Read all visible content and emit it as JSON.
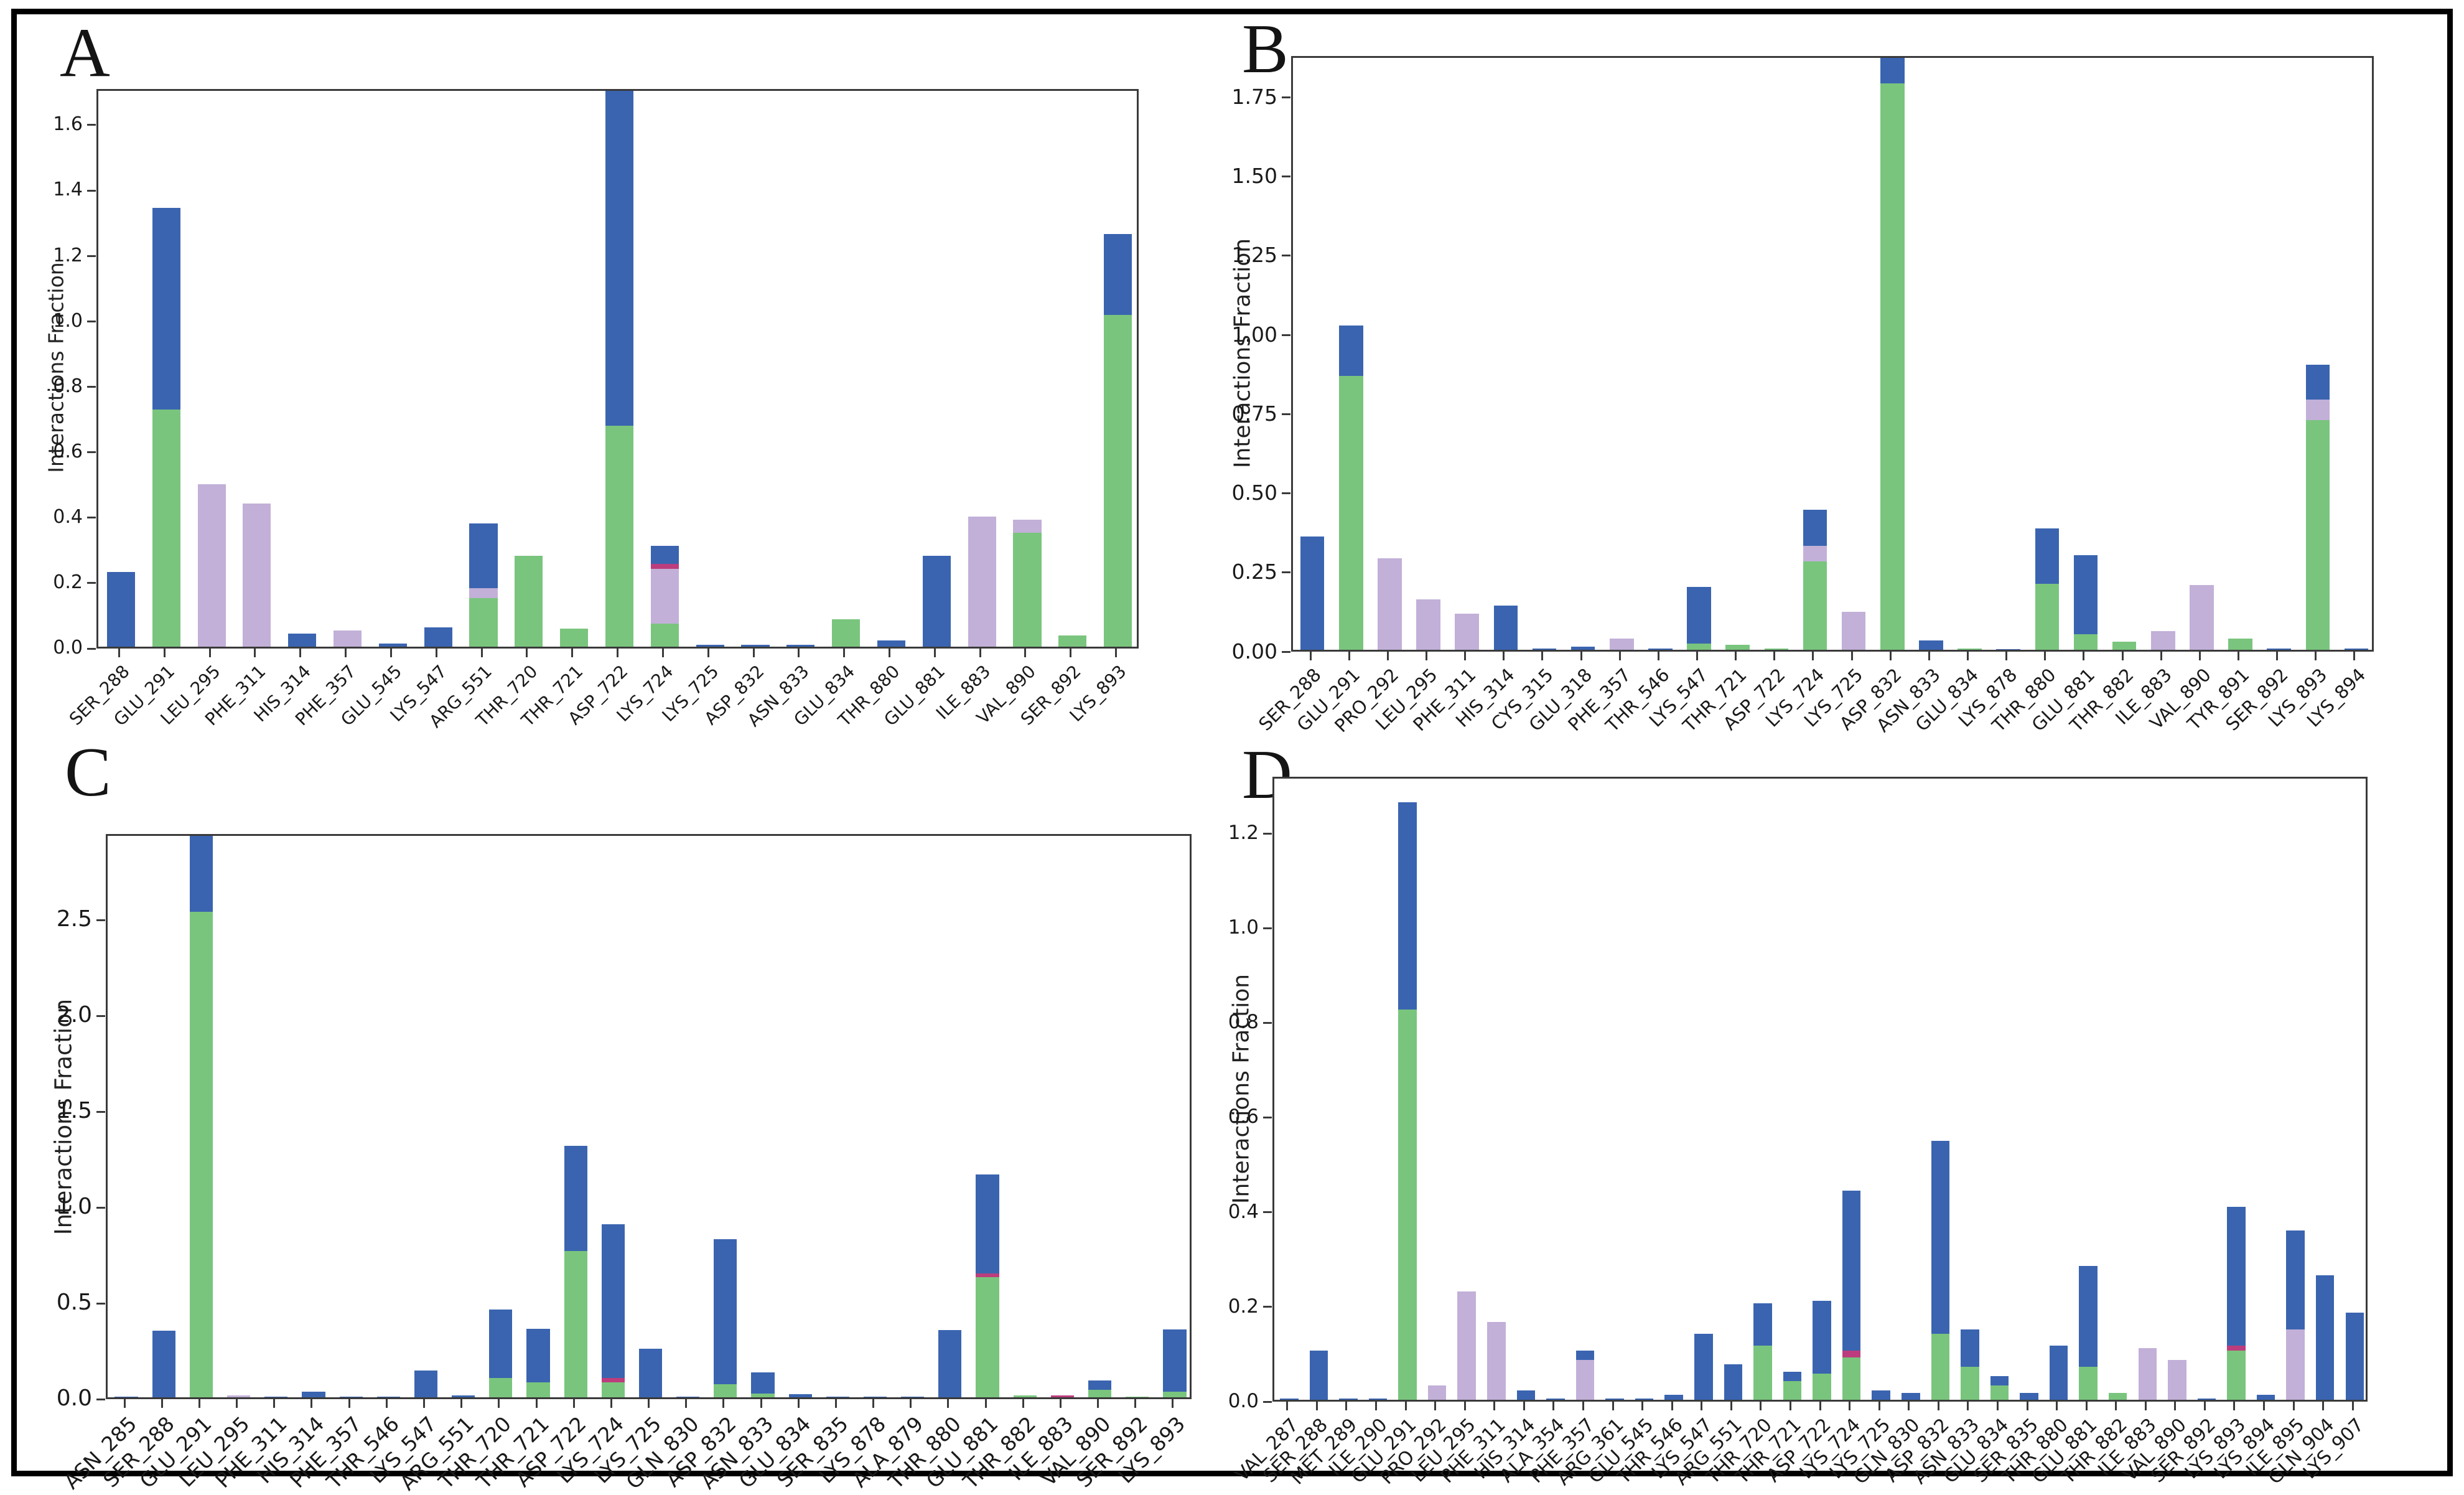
{
  "figure": {
    "background": "#ffffff",
    "outer_border_color": "#000000",
    "axis_color": "#3a3a3a",
    "segment_colors": {
      "green": "#79c57d",
      "purple": "#c2b0d8",
      "pink": "#bc3d7d",
      "blue": "#3a64b0"
    }
  },
  "chart_data": [
    {
      "id": "A",
      "type": "bar",
      "stacked": true,
      "title": "A",
      "ylabel": "Interactions Fraction",
      "xlabel": "",
      "grid": false,
      "legend": "none",
      "ylim": [
        0,
        1.71
      ],
      "yticks": {
        "values": [
          0,
          0.2,
          0.4,
          0.6,
          0.8,
          1.0,
          1.2,
          1.4,
          1.6
        ],
        "labels": [
          "0.0",
          "0.2",
          "0.4",
          "0.6",
          "0.8",
          "1.0",
          "1.2",
          "1.4",
          "1.6"
        ]
      },
      "categories": [
        "SER_288",
        "GLU_291",
        "LEU_295",
        "PHE_311",
        "HIS_314",
        "PHE_357",
        "GLU_545",
        "LYS_547",
        "ARG_551",
        "THR_720",
        "THR_721",
        "ASP_722",
        "LYS_724",
        "LYS_725",
        "ASP_832",
        "ASN_833",
        "GLU_834",
        "THR_880",
        "GLU_881",
        "ILE_883",
        "VAL_890",
        "SER_892",
        "LYS_893"
      ],
      "series": [
        {
          "name": "green",
          "color": "#79c57d",
          "values": [
            0,
            0.73,
            0,
            0,
            0,
            0,
            0,
            0,
            0.15,
            0.28,
            0.055,
            0.68,
            0.07,
            0,
            0,
            0,
            0.085,
            0,
            0,
            0,
            0.35,
            0.035,
            1.02
          ]
        },
        {
          "name": "purple",
          "color": "#c2b0d8",
          "values": [
            0,
            0,
            0.5,
            0.44,
            0,
            0.05,
            0,
            0,
            0.03,
            0,
            0,
            0,
            0.17,
            0,
            0,
            0,
            0,
            0,
            0,
            0.4,
            0.04,
            0,
            0
          ]
        },
        {
          "name": "pink",
          "color": "#bc3d7d",
          "values": [
            0,
            0,
            0,
            0,
            0,
            0,
            0,
            0,
            0,
            0,
            0,
            0,
            0.015,
            0,
            0,
            0,
            0,
            0,
            0,
            0,
            0,
            0,
            0
          ]
        },
        {
          "name": "blue",
          "color": "#3a64b0",
          "values": [
            0.23,
            0.62,
            0,
            0,
            0.04,
            0,
            0.01,
            0.06,
            0.2,
            0,
            0,
            1.03,
            0.055,
            0.005,
            0.005,
            0.005,
            0,
            0.02,
            0.28,
            0,
            0,
            0,
            0.25
          ]
        }
      ]
    },
    {
      "id": "B",
      "type": "bar",
      "stacked": true,
      "title": "B",
      "ylabel": "Interactions Fraction",
      "xlabel": "",
      "grid": false,
      "legend": "none",
      "ylim": [
        0,
        1.88
      ],
      "yticks": {
        "values": [
          0,
          0.25,
          0.5,
          0.75,
          1.0,
          1.25,
          1.5,
          1.75
        ],
        "labels": [
          "0.00",
          "0.25",
          "0.50",
          "0.75",
          "1.00",
          "1.25",
          "1.50",
          "1.75"
        ]
      },
      "categories": [
        "SER_288",
        "GLU_291",
        "PRO_292",
        "LEU_295",
        "PHE_311",
        "HIS_314",
        "CYS_315",
        "GLU_318",
        "PHE_357",
        "THR_546",
        "LYS_547",
        "THR_721",
        "ASP_722",
        "LYS_724",
        "LYS_725",
        "ASP_832",
        "ASN_833",
        "GLU_834",
        "LYS_878",
        "THR_880",
        "GLU_881",
        "THR_882",
        "ILE_883",
        "VAL_890",
        "TYR_891",
        "SER_892",
        "LYS_893",
        "LYS_894"
      ],
      "series": [
        {
          "name": "green",
          "color": "#79c57d",
          "values": [
            0,
            0.87,
            0,
            0,
            0,
            0,
            0,
            0,
            0,
            0,
            0.02,
            0.015,
            0.005,
            0.28,
            0,
            1.8,
            0,
            0.005,
            0,
            0.21,
            0.05,
            0.025,
            0,
            0,
            0.035,
            0,
            0.73,
            0
          ]
        },
        {
          "name": "purple",
          "color": "#c2b0d8",
          "values": [
            0,
            0,
            0.29,
            0.16,
            0.115,
            0,
            0,
            0,
            0.035,
            0,
            0,
            0,
            0,
            0.05,
            0.12,
            0,
            0,
            0,
            0,
            0,
            0,
            0,
            0.06,
            0.205,
            0,
            0,
            0.065,
            0
          ]
        },
        {
          "name": "pink",
          "color": "#bc3d7d",
          "values": [
            0,
            0,
            0,
            0,
            0,
            0,
            0,
            0,
            0,
            0,
            0,
            0,
            0,
            0,
            0,
            0,
            0,
            0,
            0,
            0,
            0,
            0,
            0,
            0,
            0,
            0,
            0,
            0
          ]
        },
        {
          "name": "blue",
          "color": "#3a64b0",
          "values": [
            0.36,
            0.16,
            0,
            0,
            0,
            0.14,
            0.005,
            0.01,
            0,
            0.005,
            0.18,
            0,
            0,
            0.115,
            0,
            0.08,
            0.03,
            0,
            0.003,
            0.175,
            0.25,
            0,
            0,
            0,
            0,
            0.005,
            0.11,
            0.005
          ]
        }
      ]
    },
    {
      "id": "C",
      "type": "bar",
      "stacked": true,
      "title": "C",
      "ylabel": "Interactions Fraction",
      "xlabel": "",
      "grid": false,
      "legend": "none",
      "ylim": [
        0,
        2.95
      ],
      "yticks": {
        "values": [
          0,
          0.5,
          1.0,
          1.5,
          2.0,
          2.5
        ],
        "labels": [
          "0.0",
          "0.5",
          "1.0",
          "1.5",
          "2.0",
          "2.5"
        ]
      },
      "categories": [
        "ASN_285",
        "SER_288",
        "GLU_291",
        "LEU_295",
        "PHE_311",
        "HIS_314",
        "PHE_357",
        "THR_546",
        "LYS_547",
        "ARG_551",
        "THR_720",
        "THR_721",
        "ASP_722",
        "LYS_724",
        "LYS_725",
        "GLN_830",
        "ASP_832",
        "ASN_833",
        "GLU_834",
        "SER_835",
        "LYS_878",
        "ALA_879",
        "THR_880",
        "GLU_881",
        "THR_882",
        "ILE_883",
        "VAL_890",
        "SER_892",
        "LYS_893"
      ],
      "series": [
        {
          "name": "green",
          "color": "#79c57d",
          "values": [
            0,
            0,
            2.55,
            0,
            0,
            0,
            0,
            0,
            0,
            0,
            0.1,
            0.08,
            0.77,
            0.08,
            0,
            0,
            0.07,
            0.02,
            0,
            0,
            0,
            0,
            0,
            0.63,
            0.01,
            0,
            0.04,
            0.005,
            0.03
          ]
        },
        {
          "name": "purple",
          "color": "#c2b0d8",
          "values": [
            0,
            0,
            0,
            0.01,
            0,
            0,
            0,
            0,
            0,
            0,
            0,
            0,
            0,
            0,
            0,
            0,
            0,
            0,
            0,
            0,
            0,
            0,
            0,
            0,
            0,
            0,
            0,
            0,
            0
          ]
        },
        {
          "name": "pink",
          "color": "#bc3d7d",
          "values": [
            0,
            0,
            0,
            0,
            0,
            0,
            0,
            0,
            0,
            0,
            0,
            0,
            0,
            0.02,
            0,
            0,
            0,
            0,
            0,
            0,
            0,
            0,
            0,
            0.02,
            0,
            0.01,
            0,
            0,
            0
          ]
        },
        {
          "name": "blue",
          "color": "#3a64b0",
          "values": [
            0.005,
            0.35,
            0.4,
            0,
            0.005,
            0.03,
            0.005,
            0.005,
            0.14,
            0.01,
            0.36,
            0.28,
            0.55,
            0.81,
            0.255,
            0.005,
            0.76,
            0.11,
            0.015,
            0.005,
            0.003,
            0.003,
            0.355,
            0.52,
            0,
            0,
            0.05,
            0,
            0.325
          ]
        }
      ]
    },
    {
      "id": "D",
      "type": "bar",
      "stacked": true,
      "title": "D",
      "ylabel": "Interactions Fraction",
      "xlabel": "",
      "grid": false,
      "legend": "none",
      "ylim": [
        0,
        1.32
      ],
      "yticks": {
        "values": [
          0,
          0.2,
          0.4,
          0.6,
          0.8,
          1.0,
          1.2
        ],
        "labels": [
          "0.0",
          "0.2",
          "0.4",
          "0.6",
          "0.8",
          "1.0",
          "1.2"
        ]
      },
      "categories": [
        "VAL_287",
        "SER_288",
        "MET_289",
        "ILE_290",
        "GLU_291",
        "PRO_292",
        "LEU_295",
        "PHE_311",
        "HIS_314",
        "ALA_354",
        "PHE_357",
        "ARG_361",
        "GLU_545",
        "THR_546",
        "LYS_547",
        "ARG_551",
        "THR_720",
        "THR_721",
        "ASP_722",
        "LYS_724",
        "LYS_725",
        "GLN_830",
        "ASP_832",
        "ASN_833",
        "GLU_834",
        "SER_835",
        "THR_880",
        "GLU_881",
        "THR_882",
        "ILE_883",
        "VAL_890",
        "SER_892",
        "LYS_893",
        "LYS_894",
        "ILE_895",
        "GLN_904",
        "LYS_907"
      ],
      "series": [
        {
          "name": "green",
          "color": "#79c57d",
          "values": [
            0,
            0,
            0,
            0,
            0.83,
            0,
            0,
            0,
            0,
            0,
            0,
            0,
            0,
            0,
            0,
            0,
            0.115,
            0.04,
            0.055,
            0.09,
            0,
            0,
            0.14,
            0.07,
            0.03,
            0,
            0,
            0.07,
            0.015,
            0,
            0,
            0,
            0.105,
            0,
            0,
            0,
            0
          ]
        },
        {
          "name": "purple",
          "color": "#c2b0d8",
          "values": [
            0,
            0,
            0,
            0,
            0,
            0.03,
            0.23,
            0.165,
            0,
            0,
            0.085,
            0,
            0,
            0,
            0,
            0,
            0,
            0,
            0,
            0,
            0,
            0,
            0,
            0,
            0,
            0,
            0,
            0,
            0,
            0.11,
            0.085,
            0,
            0,
            0,
            0.15,
            0,
            0
          ]
        },
        {
          "name": "pink",
          "color": "#bc3d7d",
          "values": [
            0,
            0,
            0,
            0,
            0,
            0,
            0,
            0,
            0,
            0,
            0,
            0,
            0,
            0,
            0,
            0,
            0,
            0,
            0,
            0.015,
            0,
            0,
            0,
            0,
            0,
            0,
            0,
            0,
            0,
            0,
            0,
            0,
            0.01,
            0,
            0,
            0,
            0
          ]
        },
        {
          "name": "blue",
          "color": "#3a64b0",
          "values": [
            0.003,
            0.105,
            0.003,
            0.003,
            0.44,
            0,
            0,
            0,
            0.02,
            0.003,
            0.02,
            0.003,
            0.003,
            0.01,
            0.14,
            0.075,
            0.09,
            0.02,
            0.155,
            0.34,
            0.02,
            0.015,
            0.41,
            0.08,
            0.02,
            0.015,
            0.115,
            0.215,
            0,
            0,
            0,
            0.003,
            0.295,
            0.01,
            0.21,
            0.265,
            0.185
          ]
        }
      ]
    }
  ]
}
